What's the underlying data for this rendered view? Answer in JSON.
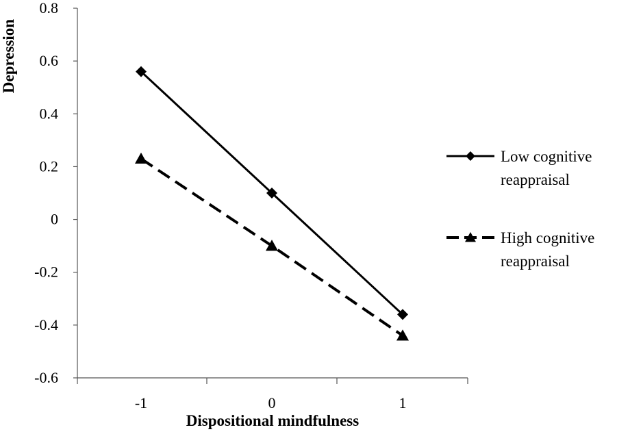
{
  "chart_data": {
    "type": "line",
    "title": "",
    "xlabel": "Dispositional  mindfulness",
    "ylabel": "Depression",
    "categories": [
      "-1",
      "0",
      "1"
    ],
    "x": [
      -1,
      0,
      1
    ],
    "ylim": [
      -0.6,
      0.8
    ],
    "yticks": [
      0.8,
      0.6,
      0.4,
      0.2,
      0,
      -0.2,
      -0.4,
      -0.6
    ],
    "ytick_labels": [
      "0.8",
      "0.6",
      "0.4",
      "0.2",
      "0",
      "-0.2",
      "-0.4",
      "-0.6"
    ],
    "grid": false,
    "legend_position": "right",
    "series": [
      {
        "name_lines": [
          "Low cognitive",
          "reappraisal"
        ],
        "values": [
          0.56,
          0.1,
          -0.36
        ],
        "marker": "diamond",
        "line_style": "solid",
        "color": "#000000"
      },
      {
        "name_lines": [
          "High cognitive",
          "reappraisal"
        ],
        "values": [
          0.23,
          -0.1,
          -0.44
        ],
        "marker": "triangle",
        "line_style": "dashed",
        "color": "#000000"
      }
    ]
  }
}
